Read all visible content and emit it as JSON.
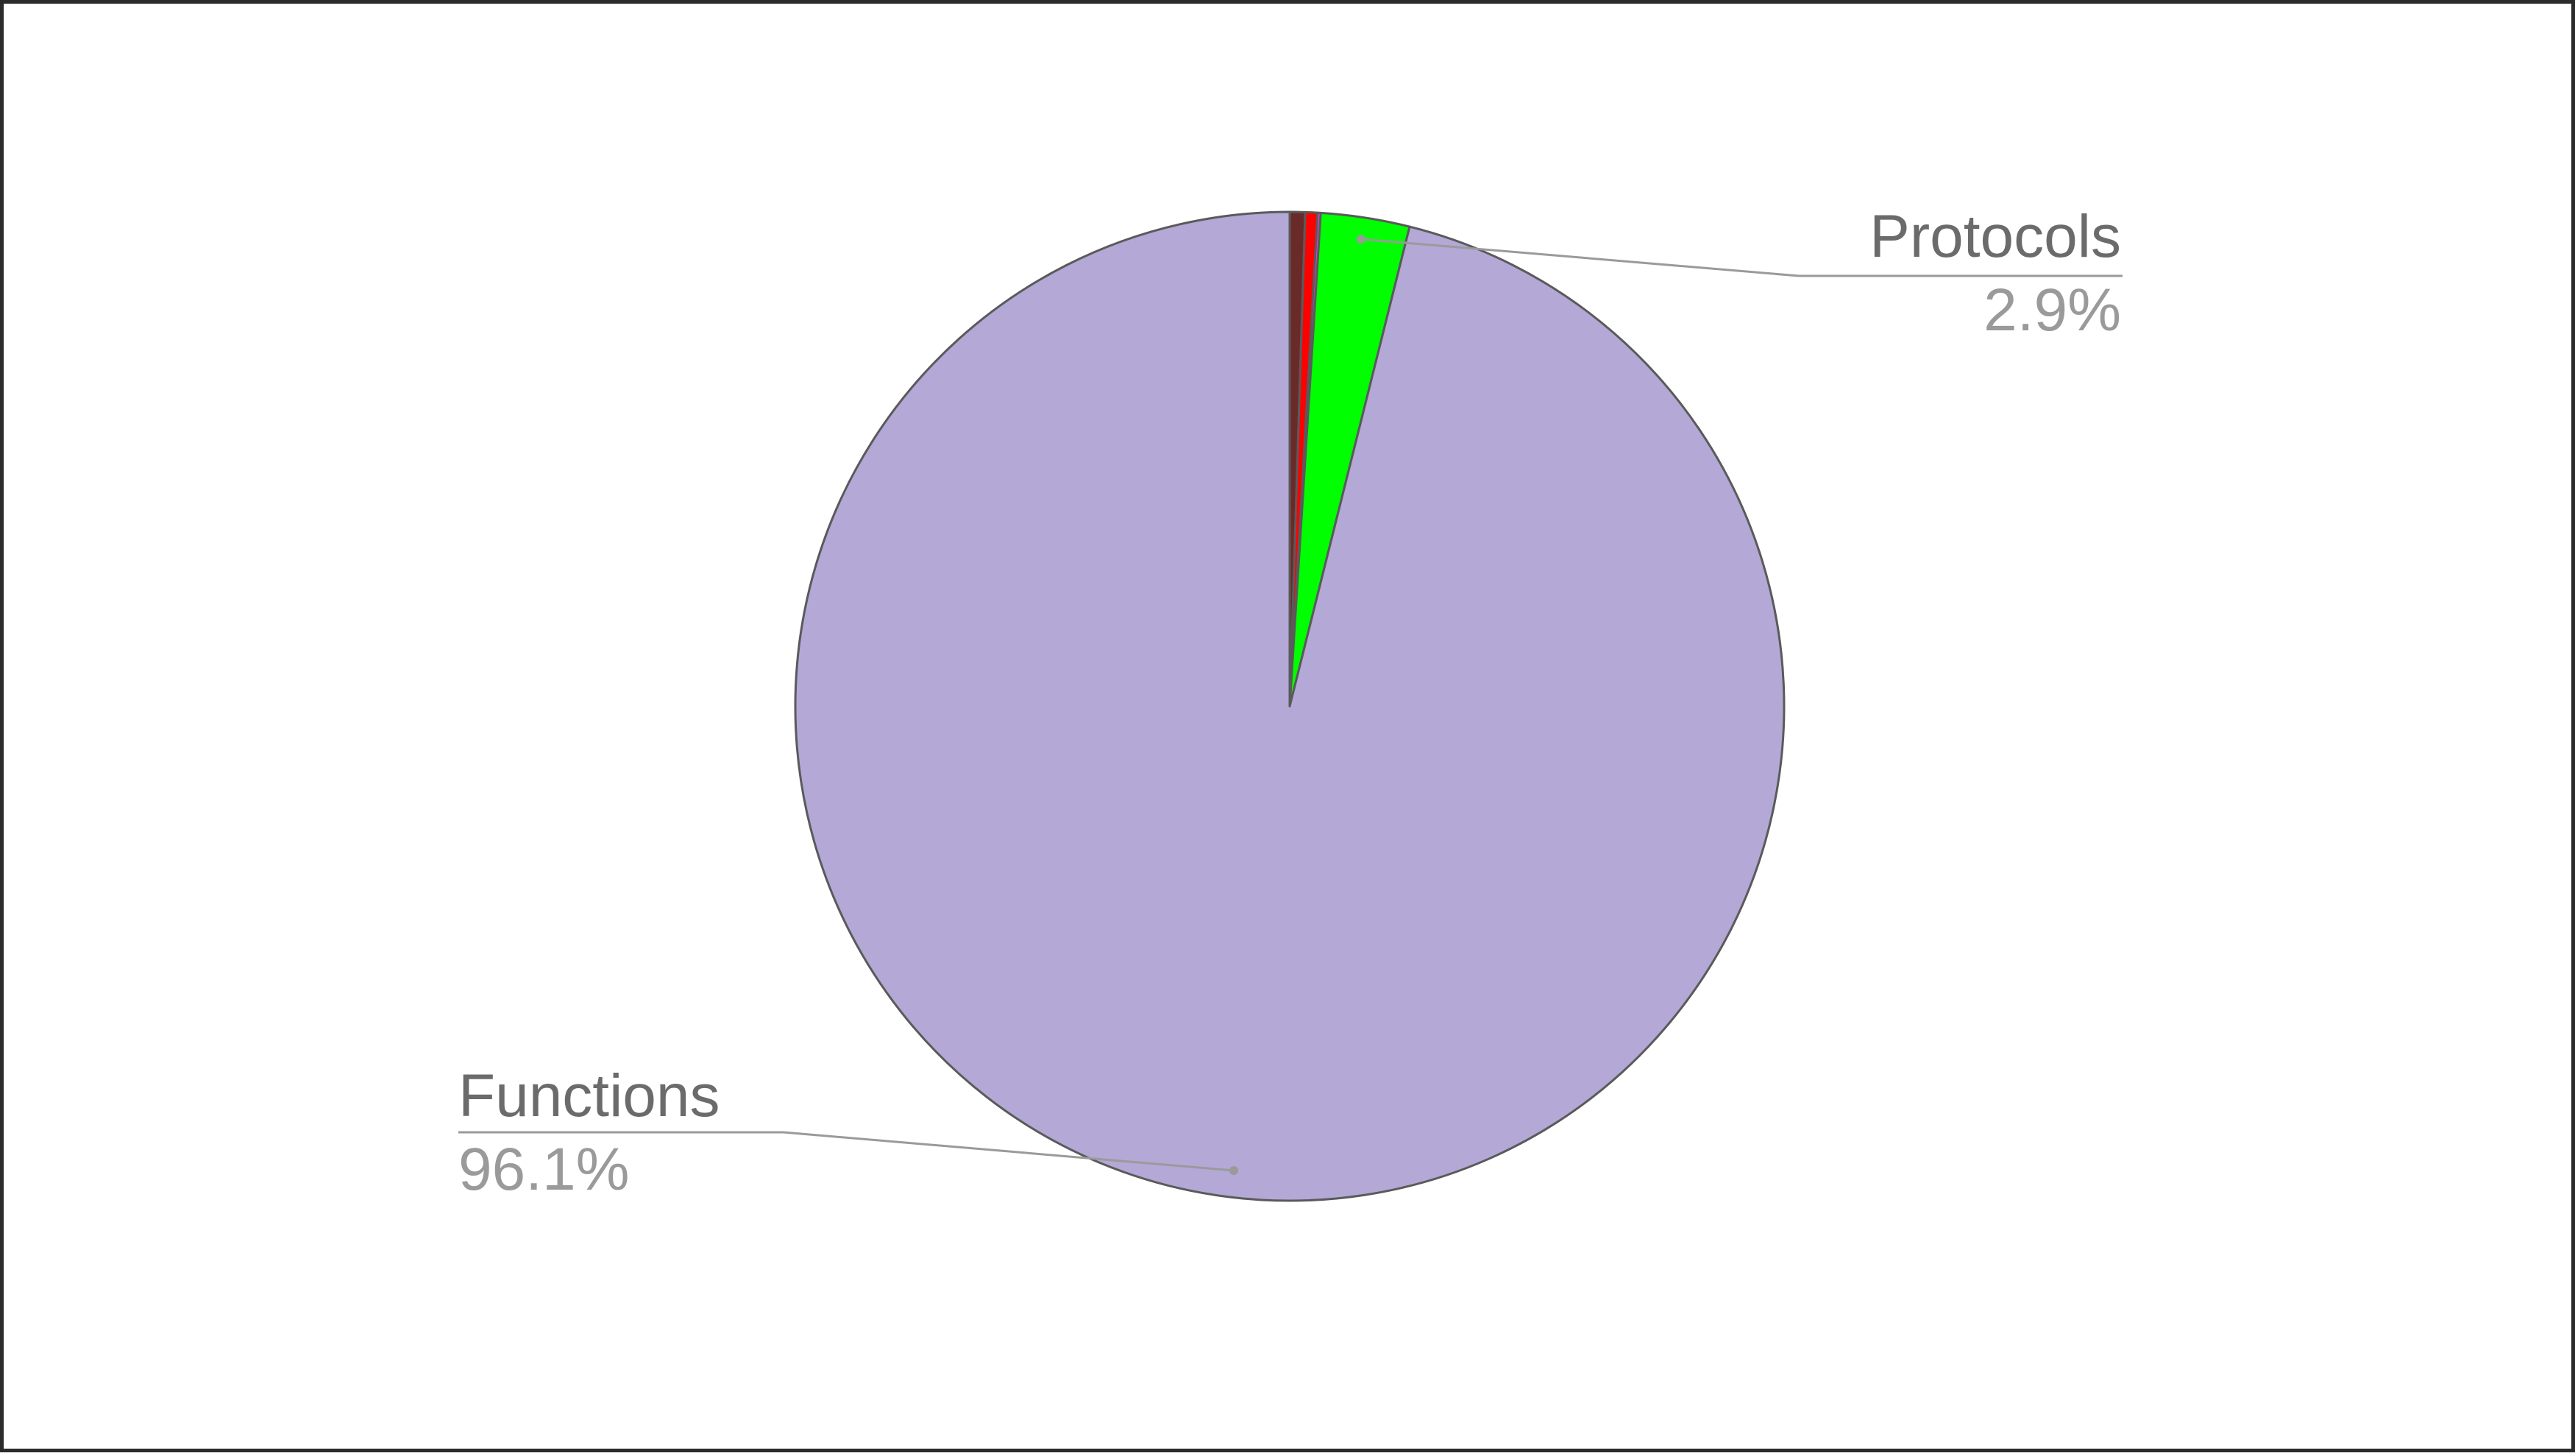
{
  "chart_data": {
    "type": "pie",
    "title": "",
    "start_angle_deg": 0,
    "direction": "clockwise",
    "slices": [
      {
        "label": "",
        "value": 0.5,
        "color": "#6b2a2a"
      },
      {
        "label": "",
        "value": 0.4,
        "color": "#ff0000"
      },
      {
        "label": "",
        "value": 0.1,
        "color": "#ff33ff"
      },
      {
        "label": "Protocols",
        "value": 2.9,
        "display": "2.9%",
        "color": "#00ff00"
      },
      {
        "label": "Functions",
        "value": 96.1,
        "display": "96.1%",
        "color": "#b3a8d6"
      }
    ],
    "labeled_slices": [
      {
        "name": "Protocols",
        "percent": "2.9%",
        "side": "top-right"
      },
      {
        "name": "Functions",
        "percent": "96.1%",
        "side": "bottom-left"
      }
    ]
  }
}
